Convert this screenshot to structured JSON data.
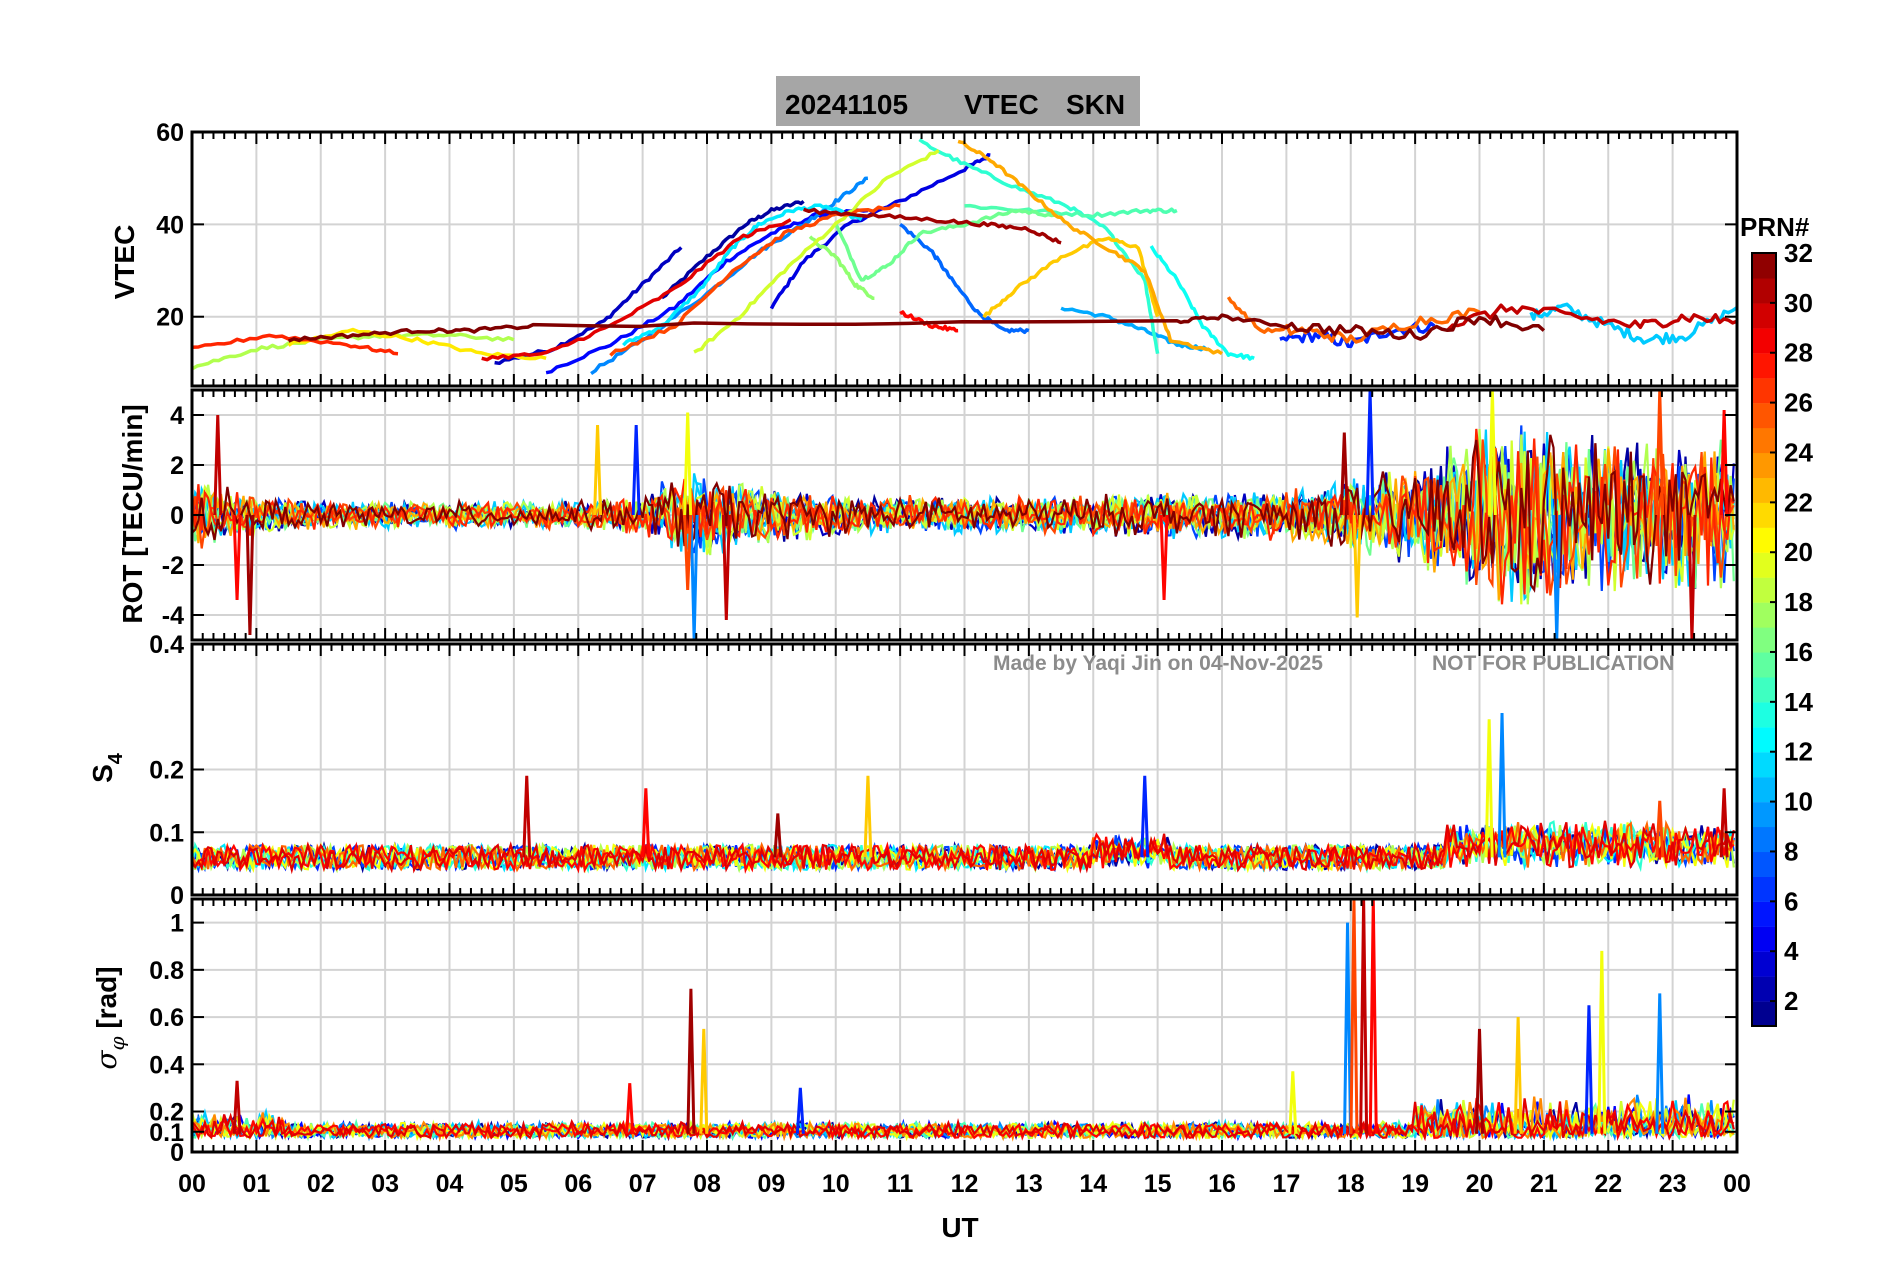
{
  "title": {
    "date": "20241105",
    "quantity": "VTEC",
    "station": "SKN"
  },
  "watermark": {
    "made_by": "Made by Yaqi Jin on 04-Nov-2025",
    "notice": "NOT FOR PUBLICATION"
  },
  "colorbar": {
    "label": "PRN#",
    "range": [
      1,
      32
    ],
    "ticks": [
      "2",
      "4",
      "6",
      "8",
      "10",
      "12",
      "14",
      "16",
      "18",
      "20",
      "22",
      "24",
      "26",
      "28",
      "30",
      "32"
    ],
    "colormap": "jet"
  },
  "chart_data": [
    {
      "type": "line",
      "panel": "vtec",
      "ylabel": "VTEC",
      "ylim": [
        5,
        60
      ],
      "yticks": [
        "20",
        "40",
        "60"
      ],
      "x_unit": "UT hours",
      "series": [
        {
          "prn": 2,
          "x": [
            7.3,
            8.0,
            8.6,
            9.0,
            9.5
          ],
          "y": [
            24,
            33,
            40,
            43,
            45
          ]
        },
        {
          "prn": 3,
          "x": [
            4.7,
            5.6,
            6.4,
            7.0,
            7.6
          ],
          "y": [
            10,
            13,
            19,
            27,
            35
          ]
        },
        {
          "prn": 4,
          "x": [
            9.0,
            9.5,
            10.2,
            11.0,
            12.0,
            12.4
          ],
          "y": [
            22,
            32,
            40,
            45,
            52,
            55
          ]
        },
        {
          "prn": 5,
          "x": [
            5.5,
            6.5,
            7.5,
            8.3,
            9.0,
            9.7,
            10.5
          ],
          "y": [
            8,
            14,
            22,
            32,
            38,
            42,
            43
          ]
        },
        {
          "prn": 6,
          "x": [
            16.9,
            17.5,
            18.0,
            18.6,
            19.3
          ],
          "y": [
            15,
            16,
            14,
            17,
            18
          ]
        },
        {
          "prn": 8,
          "x": [
            11.0,
            11.5,
            11.8,
            12.2,
            12.6,
            13.0
          ],
          "y": [
            40,
            34,
            28,
            21,
            17,
            17
          ]
        },
        {
          "prn": 9,
          "x": [
            6.2,
            7.0,
            8.0,
            8.8,
            9.5,
            10.0,
            10.5
          ],
          "y": [
            8,
            15,
            25,
            34,
            40,
            45,
            50
          ]
        },
        {
          "prn": 10,
          "x": [
            13.5,
            14.2,
            14.8,
            15.3,
            15.8
          ],
          "y": [
            22,
            20,
            17,
            14,
            13
          ]
        },
        {
          "prn": 11,
          "x": [
            20.8,
            21.3,
            22.0,
            22.6,
            23.2,
            24.0
          ],
          "y": [
            20,
            22,
            18,
            15,
            16,
            22
          ]
        },
        {
          "prn": 12,
          "x": [
            6.7,
            7.3,
            7.9,
            8.4,
            8.8,
            9.3,
            9.8,
            10.4
          ],
          "y": [
            14,
            18,
            26,
            35,
            40,
            43,
            44,
            41
          ]
        },
        {
          "prn": 13,
          "x": [
            14.9,
            15.3,
            15.7,
            16.1,
            16.5
          ],
          "y": [
            35,
            28,
            18,
            12,
            11
          ]
        },
        {
          "prn": 14,
          "x": [
            11.3,
            12.0,
            12.8,
            13.6,
            14.2,
            14.8,
            15.0
          ],
          "y": [
            58,
            53,
            48,
            44,
            39,
            28,
            12
          ]
        },
        {
          "prn": 15,
          "x": [
            12.0,
            13.0,
            14.0,
            14.8,
            15.3
          ],
          "y": [
            44,
            43,
            42,
            43,
            43
          ]
        },
        {
          "prn": 16,
          "x": [
            10.0,
            10.4,
            10.8,
            11.3,
            12.0,
            12.8,
            13.4
          ],
          "y": [
            40,
            28,
            31,
            38,
            40,
            43,
            42
          ]
        },
        {
          "prn": 17,
          "x": [
            9.6,
            10.0,
            10.3,
            10.6
          ],
          "y": [
            37,
            33,
            27,
            24
          ]
        },
        {
          "prn": 18,
          "x": [
            0.0,
            1.0,
            2.0,
            3.0,
            4.0,
            5.0
          ],
          "y": [
            9,
            13,
            15,
            16,
            16,
            15
          ]
        },
        {
          "prn": 19,
          "x": [
            7.8,
            8.5,
            9.2,
            10.0,
            10.8,
            11.6
          ],
          "y": [
            12,
            20,
            30,
            40,
            50,
            56
          ]
        },
        {
          "prn": 21,
          "x": [
            1.5,
            2.5,
            3.5,
            4.5,
            5.5
          ],
          "y": [
            14,
            17,
            15,
            12,
            11
          ]
        },
        {
          "prn": 22,
          "x": [
            12.3,
            12.8,
            13.5,
            14.2,
            14.7,
            15.0
          ],
          "y": [
            20,
            26,
            33,
            37,
            35,
            20
          ]
        },
        {
          "prn": 23,
          "x": [
            11.9,
            12.4,
            13.0,
            13.6,
            14.2,
            14.8,
            15.2,
            16.0
          ],
          "y": [
            58,
            54,
            47,
            40,
            35,
            30,
            15,
            12
          ]
        },
        {
          "prn": 25,
          "x": [
            16.1,
            16.6,
            17.3,
            18.0,
            19.0,
            20.0
          ],
          "y": [
            24,
            17,
            17,
            15,
            19,
            21
          ]
        },
        {
          "prn": 26,
          "x": [
            6.5,
            7.5,
            8.4,
            9.2,
            10.0,
            11.0
          ],
          "y": [
            12,
            18,
            30,
            38,
            42,
            44
          ]
        },
        {
          "prn": 27,
          "x": [
            0.0,
            1.2,
            2.4,
            3.2
          ],
          "y": [
            13,
            16,
            14,
            12
          ]
        },
        {
          "prn": 28,
          "x": [
            11.0,
            11.5,
            11.9
          ],
          "y": [
            21,
            18,
            17
          ]
        },
        {
          "prn": 29,
          "x": [
            4.5,
            5.5,
            6.5,
            7.5,
            8.5,
            9.3
          ],
          "y": [
            11,
            12,
            18,
            26,
            37,
            41
          ]
        },
        {
          "prn": 30,
          "x": [
            19.5,
            20.5,
            21.5,
            22.5,
            23.2,
            24.0
          ],
          "y": [
            18,
            22,
            20,
            18,
            20,
            19
          ]
        },
        {
          "prn": 31,
          "x": [
            9.5,
            10.5,
            11.5,
            12.3,
            13.0,
            13.5
          ],
          "y": [
            43,
            42,
            41,
            40,
            39,
            36
          ]
        },
        {
          "prn": 32,
          "x": [
            1.5,
            2.5,
            3.5,
            4.3,
            5.3,
            15.3,
            16.0,
            17.0,
            18.0,
            19.0,
            20.0,
            21.0
          ],
          "y": [
            15,
            16,
            17,
            17,
            18,
            19,
            20,
            18,
            17,
            16,
            20,
            17
          ]
        }
      ]
    },
    {
      "type": "line",
      "panel": "rot",
      "ylabel": "ROT [TECU/min]",
      "ylim": [
        -5,
        5
      ],
      "yticks": [
        "-4",
        "-2",
        "0",
        "2",
        "4"
      ],
      "x_unit": "UT hours",
      "noise_envelope": {
        "x": [
          0,
          1,
          2,
          3,
          4,
          5,
          6,
          7,
          7.5,
          8,
          9,
          10,
          11,
          12,
          13,
          14,
          15,
          16,
          17,
          18,
          19,
          20,
          21,
          22,
          23,
          24
        ],
        "amplitude": [
          1.6,
          0.8,
          0.6,
          0.6,
          0.6,
          0.6,
          0.6,
          0.9,
          1.8,
          1.8,
          1.2,
          0.9,
          0.8,
          0.8,
          0.8,
          0.9,
          1.0,
          1.0,
          1.1,
          1.6,
          2.2,
          4.0,
          4.0,
          3.5,
          3.2,
          3.0
        ]
      },
      "spikes": [
        {
          "x": 0.4,
          "y": 4.0
        },
        {
          "x": 0.7,
          "y": -3.4
        },
        {
          "x": 0.9,
          "y": -4.8
        },
        {
          "x": 6.3,
          "y": 3.6
        },
        {
          "x": 6.9,
          "y": 3.6
        },
        {
          "x": 7.7,
          "y": 4.1
        },
        {
          "x": 7.8,
          "y": -5.0
        },
        {
          "x": 7.7,
          "y": -3.0
        },
        {
          "x": 8.3,
          "y": -4.2
        },
        {
          "x": 15.1,
          "y": -3.4
        },
        {
          "x": 17.9,
          "y": 3.3
        },
        {
          "x": 18.1,
          "y": -4.1
        },
        {
          "x": 18.3,
          "y": 5.0
        },
        {
          "x": 20.2,
          "y": 5.0
        },
        {
          "x": 21.2,
          "y": -5.0
        },
        {
          "x": 22.8,
          "y": 5.0
        },
        {
          "x": 23.3,
          "y": -5.0
        },
        {
          "x": 23.8,
          "y": 4.2
        }
      ]
    },
    {
      "type": "line",
      "panel": "s4",
      "ylabel": "S4",
      "ylim": [
        0,
        0.4
      ],
      "yticks": [
        "0",
        "0.1",
        "0.2",
        "0.4"
      ],
      "x_unit": "UT hours",
      "baseline": 0.06,
      "spikes": [
        {
          "x": 5.2,
          "y": 0.19
        },
        {
          "x": 7.05,
          "y": 0.17
        },
        {
          "x": 9.1,
          "y": 0.13
        },
        {
          "x": 10.5,
          "y": 0.19
        },
        {
          "x": 14.8,
          "y": 0.19
        },
        {
          "x": 20.15,
          "y": 0.28
        },
        {
          "x": 20.35,
          "y": 0.29
        },
        {
          "x": 22.8,
          "y": 0.15
        },
        {
          "x": 23.8,
          "y": 0.17
        }
      ]
    },
    {
      "type": "line",
      "panel": "sigma_phi",
      "ylabel": "σφ [rad]",
      "ylim": [
        0,
        1.1
      ],
      "yticks": [
        "0",
        "0.1",
        "0.2",
        "0.4",
        "0.6",
        "0.8",
        "1"
      ],
      "x_unit": "UT hours",
      "baseline": 0.09,
      "spikes": [
        {
          "x": 0.7,
          "y": 0.33
        },
        {
          "x": 6.8,
          "y": 0.32
        },
        {
          "x": 7.75,
          "y": 0.72
        },
        {
          "x": 7.95,
          "y": 0.55
        },
        {
          "x": 9.45,
          "y": 0.3
        },
        {
          "x": 17.1,
          "y": 0.37
        },
        {
          "x": 17.95,
          "y": 1.0
        },
        {
          "x": 18.05,
          "y": 1.1
        },
        {
          "x": 18.2,
          "y": 1.1
        },
        {
          "x": 18.35,
          "y": 1.1
        },
        {
          "x": 20.0,
          "y": 0.55
        },
        {
          "x": 20.6,
          "y": 0.6
        },
        {
          "x": 21.7,
          "y": 0.65
        },
        {
          "x": 21.9,
          "y": 0.88
        },
        {
          "x": 22.8,
          "y": 0.7
        }
      ]
    }
  ],
  "xaxis": {
    "label": "UT",
    "ticks": [
      "00",
      "01",
      "02",
      "03",
      "04",
      "05",
      "06",
      "07",
      "08",
      "09",
      "10",
      "11",
      "12",
      "13",
      "14",
      "15",
      "16",
      "17",
      "18",
      "19",
      "20",
      "21",
      "22",
      "23",
      "00"
    ]
  }
}
